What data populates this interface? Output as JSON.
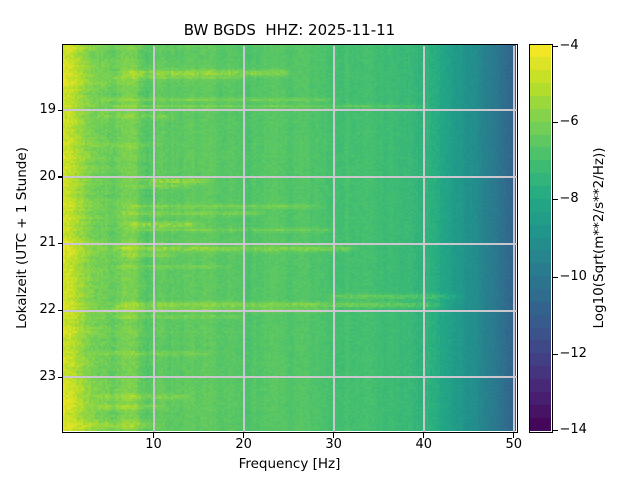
{
  "figure": {
    "title": "BW BGDS  HHZ: 2025-11-11",
    "xlabel": "Frequency [Hz]",
    "ylabel": "Lokalzeit (UTC + 1 Stunde)",
    "colorbar_label": "Log10(Sqrt(m**2/s**2/Hz))"
  },
  "chart_data": {
    "type": "heatmap",
    "subtype": "seismic-spectrogram",
    "title": "BW BGDS  HHZ: 2025-11-11",
    "station": "BW BGDS HHZ",
    "date": "2025-11-11",
    "grid": true,
    "grid_color": "#ccc6ce",
    "x_axis": {
      "label": "Frequency [Hz]",
      "range": [
        0,
        50.3
      ],
      "ticks": [
        10,
        20,
        30,
        40,
        50
      ],
      "tick_labels": [
        "10",
        "20",
        "30",
        "40",
        "50"
      ]
    },
    "y_axis": {
      "label": "Lokalzeit (UTC + 1 Stunde)",
      "range_hours": [
        18.03,
        23.81
      ],
      "ticks": [
        19,
        20,
        21,
        22,
        23
      ],
      "tick_labels": [
        "19",
        "20",
        "21",
        "22",
        "23"
      ]
    },
    "colorbar": {
      "label": "Log10(Sqrt(m**2/s**2/Hz))",
      "value_top": -4,
      "value_bottom": -14,
      "ticks": [
        -4,
        -6,
        -8,
        -10,
        -12,
        -14
      ],
      "tick_labels": [
        "−4",
        "−6",
        "−8",
        "−10",
        "−12",
        "−14"
      ],
      "colormap": "viridis",
      "levels": 30
    },
    "viridis_stops": [
      [
        0.0,
        "#440154"
      ],
      [
        0.1,
        "#482475"
      ],
      [
        0.2,
        "#414487"
      ],
      [
        0.3,
        "#355f8d"
      ],
      [
        0.4,
        "#2a788e"
      ],
      [
        0.5,
        "#21918c"
      ],
      [
        0.6,
        "#22a884"
      ],
      [
        0.7,
        "#44bf70"
      ],
      [
        0.8,
        "#7ad151"
      ],
      [
        0.9,
        "#bddf26"
      ],
      [
        1.0,
        "#fde725"
      ]
    ],
    "mean_spectrum_profile": {
      "comment": "estimated Log10(Sqrt(m**2/s**2/Hz)) vs frequency [Hz]",
      "freq_hz": [
        0,
        0.4,
        1,
        1.8,
        3,
        4.5,
        5.5,
        6.8,
        7.8,
        9.2,
        10.5,
        13,
        16,
        20,
        24,
        28,
        31,
        34,
        37,
        39,
        41,
        43,
        45,
        47,
        48.5,
        50.3
      ],
      "level": [
        -4.5,
        -4.75,
        -5.0,
        -5.4,
        -5.9,
        -6.2,
        -6.3,
        -6.05,
        -6.15,
        -6.6,
        -6.5,
        -6.5,
        -6.6,
        -6.75,
        -6.7,
        -6.85,
        -6.9,
        -7.05,
        -7.25,
        -7.4,
        -7.75,
        -8.35,
        -9.0,
        -9.7,
        -10.2,
        -10.9
      ]
    },
    "transient_streaks": {
      "comment": "bright horizontal events: [local_hour, f_min_hz, f_max_hz, amplitude, half_width_hours]",
      "events": [
        [
          18.45,
          7,
          25,
          0.85,
          0.035
        ],
        [
          18.52,
          5,
          20,
          0.45,
          0.02
        ],
        [
          18.85,
          4,
          30,
          0.5,
          0.022
        ],
        [
          18.95,
          5,
          40,
          0.45,
          0.02
        ],
        [
          19.1,
          4,
          12,
          0.5,
          0.03
        ],
        [
          19.55,
          3,
          10,
          0.35,
          0.025
        ],
        [
          20.07,
          9,
          16,
          0.9,
          0.03
        ],
        [
          20.15,
          8,
          14,
          0.55,
          0.02
        ],
        [
          20.45,
          7,
          28,
          0.55,
          0.022
        ],
        [
          20.55,
          6,
          22,
          0.6,
          0.025
        ],
        [
          20.72,
          7,
          15,
          0.85,
          0.03
        ],
        [
          20.8,
          8,
          30,
          0.5,
          0.02
        ],
        [
          21.08,
          6,
          32,
          0.75,
          0.03
        ],
        [
          21.18,
          7,
          12,
          0.6,
          0.025
        ],
        [
          21.35,
          5,
          18,
          0.4,
          0.02
        ],
        [
          21.8,
          30,
          44,
          0.65,
          0.028
        ],
        [
          21.92,
          6,
          42,
          0.75,
          0.03
        ],
        [
          22.0,
          5,
          30,
          0.5,
          0.022
        ],
        [
          22.1,
          6,
          20,
          0.4,
          0.02
        ],
        [
          22.65,
          4,
          16,
          0.45,
          0.025
        ],
        [
          23.3,
          4,
          14,
          0.55,
          0.03
        ],
        [
          23.45,
          4,
          11,
          0.5,
          0.025
        ],
        [
          23.72,
          1,
          10,
          0.65,
          0.045
        ]
      ]
    },
    "noise": {
      "seed": 7,
      "cell_amp": 0.3,
      "lowfreq_extra_amp": 0.3,
      "row_band_amp": 0.35,
      "column_stripe_amp": 0.2
    }
  }
}
